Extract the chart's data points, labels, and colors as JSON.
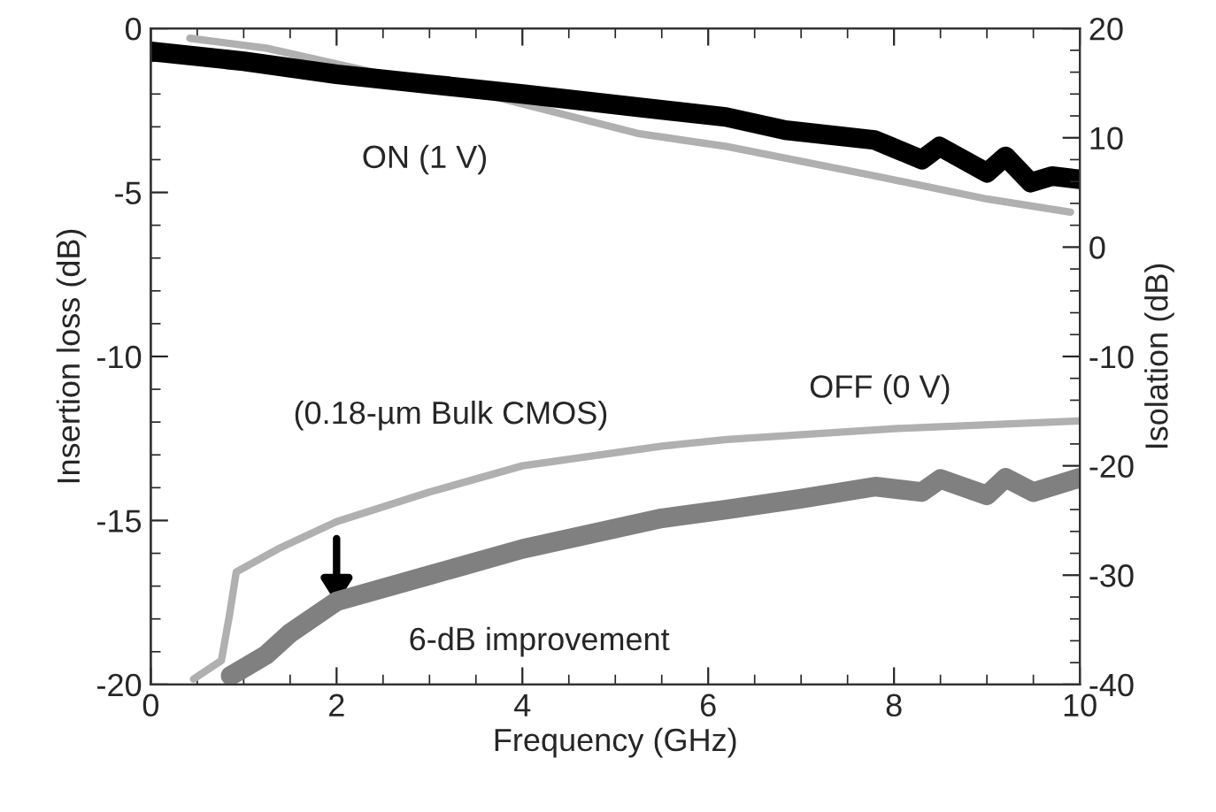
{
  "chart_data": {
    "type": "line",
    "xlabel": "Frequency (GHz)",
    "ylabel": "Insertion loss (dB)",
    "y2label": "Isolation (dB)",
    "xlim": [
      0,
      10
    ],
    "xticks": [
      0,
      2,
      4,
      6,
      8,
      10
    ],
    "ylim": [
      -20,
      0
    ],
    "yticks": [
      -20,
      -15,
      -10,
      -5,
      0
    ],
    "y2lim": [
      -40,
      20
    ],
    "y2ticks": [
      -40,
      -30,
      -20,
      -10,
      0,
      10,
      20
    ],
    "grid": false,
    "legend": false,
    "line_style": "solid",
    "series": [
      {
        "color": "#b0b0b0",
        "axis": "y",
        "x": [
          0.42,
          1.24,
          2.5,
          3.58,
          5.24,
          6.2,
          7.8,
          9.0,
          9.9
        ],
        "values": [
          -0.3,
          -0.6,
          -1.4,
          -2.0,
          -3.2,
          -3.6,
          -4.5,
          -5.2,
          -5.6
        ]
      },
      {
        "color": "#000000",
        "axis": "y",
        "x": [
          0,
          1,
          2,
          3,
          4,
          5.24,
          6.19,
          6.83,
          7.79,
          8.3,
          8.49,
          9.0,
          9.2,
          9.47,
          9.7,
          10.0
        ],
        "values": [
          -0.7,
          -1.0,
          -1.4,
          -1.7,
          -2.0,
          -2.4,
          -2.7,
          -3.1,
          -3.4,
          -4.0,
          -3.6,
          -4.4,
          -3.9,
          -4.7,
          -4.5,
          -4.6
        ]
      },
      {
        "color": "#b0b0b0",
        "axis": "y2",
        "x": [
          0.46,
          0.76,
          0.85,
          0.92,
          1.37,
          2.0,
          3.0,
          4.0,
          5.5,
          6.2,
          8.0,
          10.0
        ],
        "values": [
          -39.5,
          -37.8,
          -33.5,
          -29.7,
          -27.6,
          -25.1,
          -22.4,
          -20.0,
          -18.2,
          -17.6,
          -16.6,
          -15.9
        ]
      },
      {
        "color": "#808080",
        "axis": "y2",
        "x": [
          0.86,
          1.24,
          1.5,
          2.0,
          3.0,
          4.0,
          5.5,
          6.2,
          7.0,
          7.8,
          8.3,
          8.5,
          9.0,
          9.2,
          9.5,
          10.0
        ],
        "values": [
          -39.2,
          -37.3,
          -35.3,
          -32.4,
          -30.0,
          -27.6,
          -24.8,
          -24.0,
          -23.0,
          -21.9,
          -22.4,
          -21.2,
          -22.7,
          -21.1,
          -22.4,
          -21.1
        ]
      }
    ],
    "annotations": [
      "ON (1 V)",
      "OFF (0 V)",
      "(0.18-µm Bulk CMOS)",
      "6-dB improvement"
    ]
  }
}
